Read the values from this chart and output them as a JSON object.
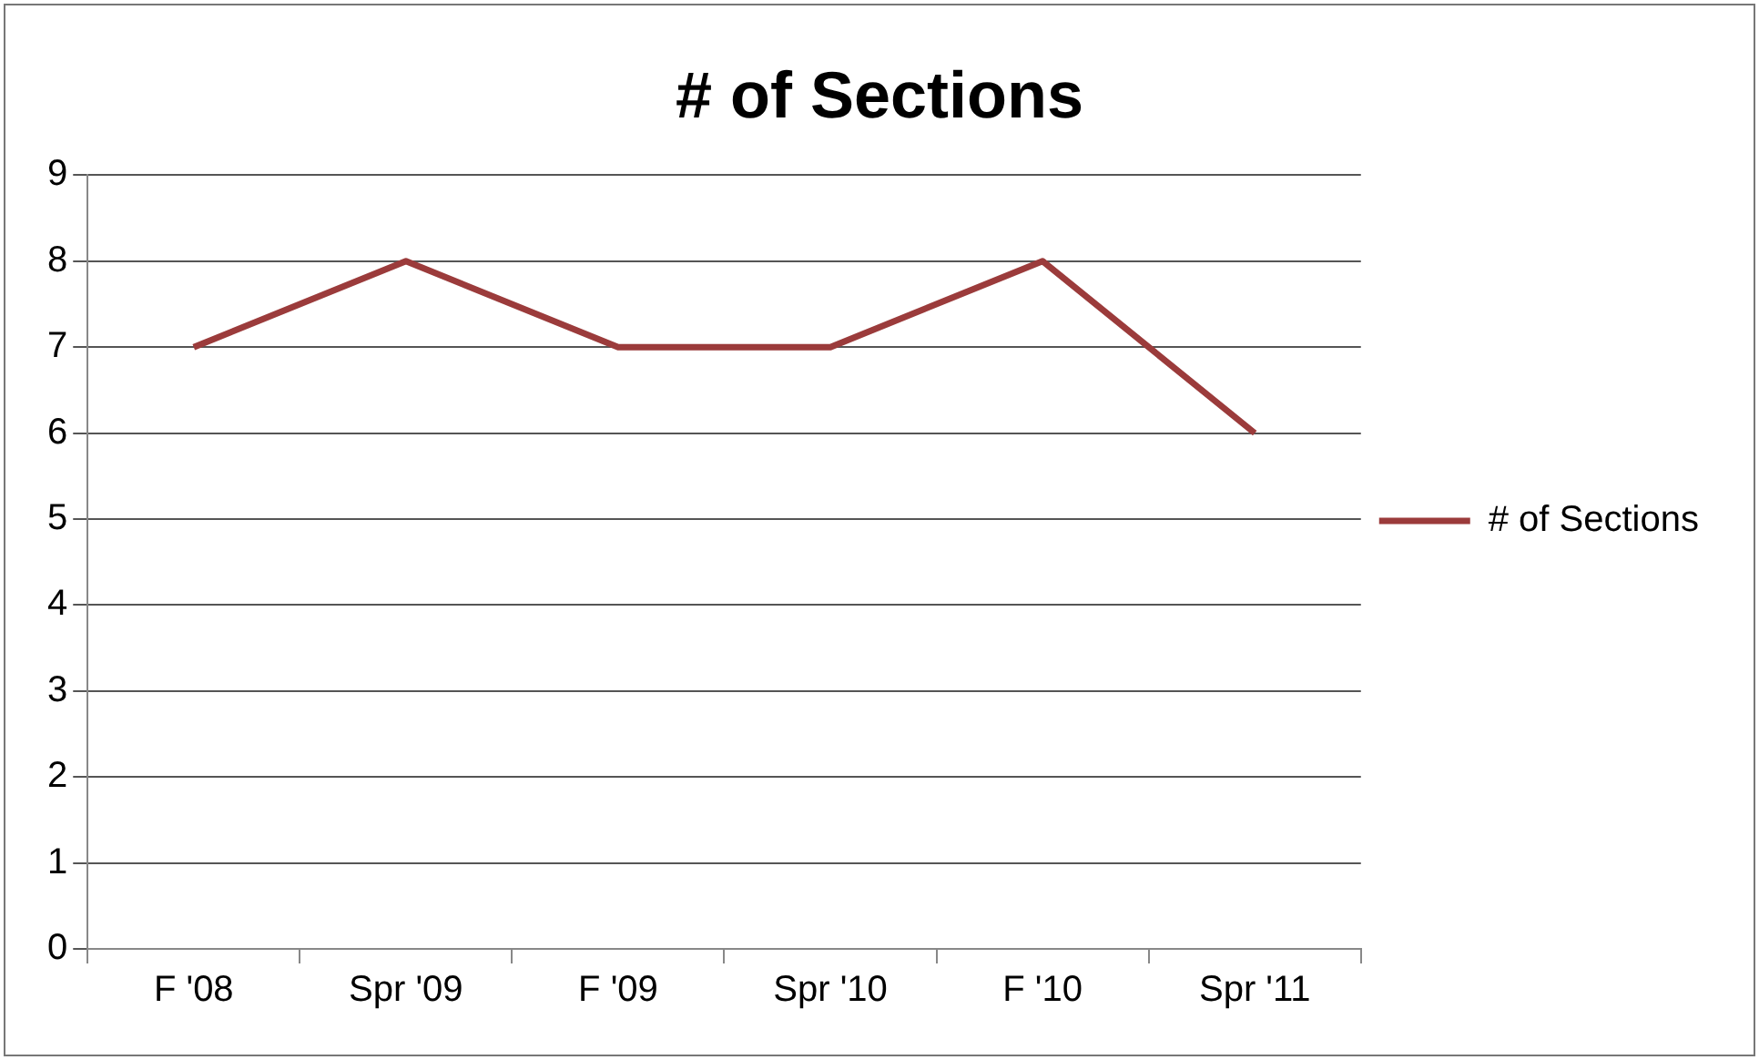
{
  "chart_data": {
    "type": "line",
    "title": "# of Sections",
    "categories": [
      "F '08",
      "Spr '09",
      "F '09",
      "Spr '10",
      "F '10",
      "Spr '11"
    ],
    "series": [
      {
        "name": "# of Sections",
        "color": "#9b3b3b",
        "values": [
          7,
          8,
          7,
          7,
          8,
          6
        ]
      }
    ],
    "ylim": [
      0,
      9
    ],
    "yticks": [
      0,
      1,
      2,
      3,
      4,
      5,
      6,
      7,
      8,
      9
    ],
    "grid": "y",
    "legend": "right",
    "marker": "none"
  }
}
